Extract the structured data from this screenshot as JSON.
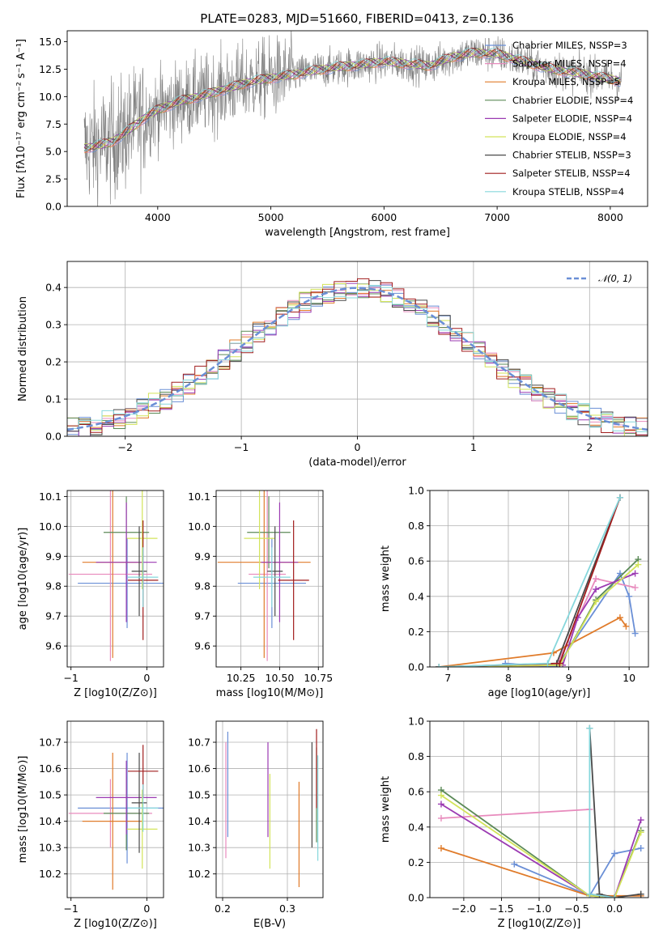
{
  "figure_title": "PLATE=0283, MJD=51660, FIBERID=0413, z=0.136",
  "series_colors": {
    "Chabrier MILES": "#6a8fd6",
    "Salpeter MILES": "#e88bbd",
    "Kroupa MILES": "#e07b2a",
    "Chabrier ELODIE": "#5b8a57",
    "Salpeter ELODIE": "#9b3ab2",
    "Kroupa ELODIE": "#d3e45a",
    "Chabrier STELIB": "#4a4a4a",
    "Salpeter STELIB": "#a11d1d",
    "Kroupa STELIB": "#86d7dc"
  },
  "chart_data": [
    {
      "id": "spectrum",
      "type": "line",
      "title": "PLATE=0283, MJD=51660, FIBERID=0413, z=0.136",
      "xlabel": "wavelength [Angstrom, rest frame]",
      "ylabel": "Flux [fλ10⁻¹⁷ erg cm⁻² s⁻¹ A⁻¹]",
      "xlim": [
        3200,
        8330
      ],
      "ylim": [
        0,
        16
      ],
      "xticks": [
        "4000",
        "5000",
        "6000",
        "7000",
        "8000"
      ],
      "yticks": [
        "0.0",
        "2.5",
        "5.0",
        "7.5",
        "10.0",
        "12.5",
        "15.0"
      ],
      "data_color": "#808080",
      "continuum": {
        "x": [
          3350,
          3500,
          3600,
          3700,
          3800,
          3900,
          4000,
          4200,
          4400,
          4600,
          4800,
          5000,
          5200,
          5400,
          5600,
          5800,
          6000,
          6200,
          6400,
          6600,
          6800,
          7000,
          7200,
          7400,
          7600,
          7800,
          8000,
          8100
        ],
        "y": [
          5.3,
          5.6,
          5.9,
          6.6,
          7.4,
          8.2,
          8.8,
          9.6,
          10.1,
          10.7,
          11.3,
          11.7,
          12.0,
          12.4,
          12.7,
          12.9,
          13.2,
          13.0,
          12.8,
          13.6,
          14.0,
          13.9,
          13.3,
          12.7,
          12.3,
          12.0,
          11.6,
          11.4
        ]
      },
      "legend": [
        "Chabrier MILES, NSSP=3",
        "Salpeter MILES, NSSP=4",
        "Kroupa MILES, NSSP=5",
        "Chabrier ELODIE, NSSP=4",
        "Salpeter ELODIE, NSSP=4",
        "Kroupa ELODIE, NSSP=4",
        "Chabrier STELIB, NSSP=3",
        "Salpeter STELIB, NSSP=4",
        "Kroupa STELIB, NSSP=4"
      ],
      "legend_series": [
        "Chabrier MILES",
        "Salpeter MILES",
        "Kroupa MILES",
        "Chabrier ELODIE",
        "Salpeter ELODIE",
        "Kroupa ELODIE",
        "Chabrier STELIB",
        "Salpeter STELIB",
        "Kroupa STELIB"
      ],
      "legend_position": "top-right"
    },
    {
      "id": "residuals",
      "type": "line",
      "xlabel": "(data-model)/error",
      "ylabel": "Normed distribution",
      "xlim": [
        -2.5,
        2.5
      ],
      "ylim": [
        0,
        0.47
      ],
      "xticks": [
        "−2",
        "−1",
        "0",
        "1",
        "2"
      ],
      "yticks": [
        "0.0",
        "0.1",
        "0.2",
        "0.3",
        "0.4"
      ],
      "reference": {
        "name": "𝒩(0, 1)",
        "mu": 0,
        "sigma": 1,
        "color": "#6a8fd6",
        "style": "dashed"
      },
      "legend_position": "top-right",
      "bin_width": 0.1
    },
    {
      "id": "age-vs-Z",
      "type": "scatter",
      "xlabel": "Z [log10(Z/Z⊙)]",
      "ylabel": "age [log10(age/yr)]",
      "xlim": [
        -1.05,
        0.22
      ],
      "ylim": [
        9.53,
        10.12
      ],
      "xticks": [
        "−1",
        "0"
      ],
      "yticks": [
        "9.6",
        "9.7",
        "9.8",
        "9.9",
        "10.0",
        "10.1"
      ],
      "points": [
        {
          "series": "Chabrier MILES",
          "x": -0.26,
          "y": 9.81,
          "xerr": 0.65,
          "yerr": 0.15
        },
        {
          "series": "Salpeter MILES",
          "x": -0.48,
          "y": 9.84,
          "xerr": 0.55,
          "yerr": 0.29
        },
        {
          "series": "Kroupa MILES",
          "x": -0.45,
          "y": 9.88,
          "xerr": 0.4,
          "yerr": 0.32
        },
        {
          "series": "Chabrier ELODIE",
          "x": -0.27,
          "y": 9.98,
          "xerr": 0.3,
          "yerr": 0.12
        },
        {
          "series": "Salpeter ELODIE",
          "x": -0.27,
          "y": 9.88,
          "xerr": 0.4,
          "yerr": 0.2
        },
        {
          "series": "Kroupa ELODIE",
          "x": -0.06,
          "y": 9.96,
          "xerr": 0.2,
          "yerr": 0.17
        },
        {
          "series": "Chabrier STELIB",
          "x": -0.1,
          "y": 9.85,
          "xerr": 0.1,
          "yerr": 0.15
        },
        {
          "series": "Salpeter STELIB",
          "x": -0.05,
          "y": 9.82,
          "xerr": 0.2,
          "yerr": 0.2
        },
        {
          "series": "Kroupa STELIB",
          "x": -0.05,
          "y": 9.83,
          "xerr": 0.2,
          "yerr": 0.1
        }
      ]
    },
    {
      "id": "age-vs-mass",
      "type": "scatter",
      "xlabel": "mass [log10(M/M⊙)]",
      "ylabel": "",
      "xlim": [
        10.09,
        10.78
      ],
      "ylim": [
        9.53,
        10.12
      ],
      "xticks": [
        "10.25",
        "10.50",
        "10.75"
      ],
      "yticks": [
        "9.6",
        "9.7",
        "9.8",
        "9.9",
        "10.0",
        "10.1"
      ],
      "points": [
        {
          "series": "Chabrier MILES",
          "x": 10.45,
          "y": 9.81,
          "xerr": 0.22,
          "yerr": 0.15
        },
        {
          "series": "Salpeter MILES",
          "x": 10.42,
          "y": 9.84,
          "xerr": 0.12,
          "yerr": 0.29
        },
        {
          "series": "Kroupa MILES",
          "x": 10.4,
          "y": 9.88,
          "xerr": 0.3,
          "yerr": 0.32
        },
        {
          "series": "Chabrier ELODIE",
          "x": 10.43,
          "y": 9.98,
          "xerr": 0.14,
          "yerr": 0.12
        },
        {
          "series": "Salpeter ELODIE",
          "x": 10.5,
          "y": 9.88,
          "xerr": 0.12,
          "yerr": 0.2
        },
        {
          "series": "Kroupa ELODIE",
          "x": 10.37,
          "y": 9.96,
          "xerr": 0.1,
          "yerr": 0.17
        },
        {
          "series": "Chabrier STELIB",
          "x": 10.47,
          "y": 9.85,
          "xerr": 0.05,
          "yerr": 0.15
        },
        {
          "series": "Salpeter STELIB",
          "x": 10.59,
          "y": 9.82,
          "xerr": 0.1,
          "yerr": 0.2
        },
        {
          "series": "Kroupa STELIB",
          "x": 10.45,
          "y": 9.83,
          "xerr": 0.12,
          "yerr": 0.1
        }
      ]
    },
    {
      "id": "mass-weight-vs-age",
      "type": "line",
      "xlabel": "age [log10(age/yr)]",
      "ylabel": "mass weight",
      "xlim": [
        6.7,
        10.32
      ],
      "ylim": [
        0,
        1.0
      ],
      "xticks": [
        "7",
        "8",
        "9",
        "10"
      ],
      "yticks": [
        "0.0",
        "0.2",
        "0.4",
        "0.6",
        "0.8",
        "1.0"
      ],
      "series": [
        {
          "name": "Chabrier MILES",
          "x": [
            7.95,
            8.8,
            9.85,
            10.0,
            10.1
          ],
          "y": [
            0.02,
            0.0,
            0.53,
            0.4,
            0.19
          ]
        },
        {
          "name": "Salpeter MILES",
          "x": [
            6.85,
            8.8,
            9.45,
            10.1
          ],
          "y": [
            0.0,
            0.01,
            0.5,
            0.45
          ]
        },
        {
          "name": "Kroupa MILES",
          "x": [
            6.85,
            8.75,
            9.85,
            9.95
          ],
          "y": [
            0.0,
            0.08,
            0.28,
            0.23
          ]
        },
        {
          "name": "Chabrier ELODIE",
          "x": [
            6.85,
            8.85,
            9.45,
            10.15
          ],
          "y": [
            0.0,
            0.01,
            0.38,
            0.61
          ]
        },
        {
          "name": "Salpeter ELODIE",
          "x": [
            6.85,
            8.9,
            9.15,
            9.45,
            10.1
          ],
          "y": [
            0.0,
            0.01,
            0.28,
            0.44,
            0.53
          ]
        },
        {
          "name": "Kroupa ELODIE",
          "x": [
            6.85,
            8.85,
            9.45,
            10.15
          ],
          "y": [
            0.0,
            0.01,
            0.37,
            0.58
          ]
        },
        {
          "name": "Chabrier STELIB",
          "x": [
            6.85,
            8.8,
            9.85
          ],
          "y": [
            0.0,
            0.02,
            0.96
          ]
        },
        {
          "name": "Salpeter STELIB",
          "x": [
            6.85,
            8.85,
            9.85
          ],
          "y": [
            0.0,
            0.02,
            0.96
          ]
        },
        {
          "name": "Kroupa STELIB",
          "x": [
            6.85,
            8.65,
            9.85
          ],
          "y": [
            0.0,
            0.02,
            0.96
          ]
        }
      ]
    },
    {
      "id": "mass-vs-Z",
      "type": "scatter",
      "xlabel": "Z [log10(Z/Z⊙)]",
      "ylabel": "mass [log10(M/M⊙)]",
      "xlim": [
        -1.05,
        0.22
      ],
      "ylim": [
        10.11,
        10.78
      ],
      "xticks": [
        "−1",
        "0"
      ],
      "yticks": [
        "10.2",
        "10.3",
        "10.4",
        "10.5",
        "10.6",
        "10.7"
      ],
      "points": [
        {
          "series": "Chabrier MILES",
          "x": -0.26,
          "y": 10.45,
          "xerr": 0.65,
          "yerr": 0.21
        },
        {
          "series": "Salpeter MILES",
          "x": -0.48,
          "y": 10.43,
          "xerr": 0.55,
          "yerr": 0.13
        },
        {
          "series": "Kroupa MILES",
          "x": -0.45,
          "y": 10.4,
          "xerr": 0.4,
          "yerr": 0.26
        },
        {
          "series": "Chabrier ELODIE",
          "x": -0.27,
          "y": 10.43,
          "xerr": 0.3,
          "yerr": 0.14
        },
        {
          "series": "Salpeter ELODIE",
          "x": -0.27,
          "y": 10.49,
          "xerr": 0.4,
          "yerr": 0.14
        },
        {
          "series": "Kroupa ELODIE",
          "x": -0.06,
          "y": 10.37,
          "xerr": 0.2,
          "yerr": 0.15
        },
        {
          "series": "Chabrier STELIB",
          "x": -0.1,
          "y": 10.47,
          "xerr": 0.1,
          "yerr": 0.19
        },
        {
          "series": "Salpeter STELIB",
          "x": -0.05,
          "y": 10.59,
          "xerr": 0.2,
          "yerr": 0.1
        },
        {
          "series": "Kroupa STELIB",
          "x": -0.05,
          "y": 10.45,
          "xerr": 0.2,
          "yerr": 0.09
        }
      ]
    },
    {
      "id": "mass-vs-ebv",
      "type": "scatter",
      "xlabel": "E(B-V)",
      "ylabel": "",
      "xlim": [
        0.19,
        0.355
      ],
      "ylim": [
        10.11,
        10.78
      ],
      "xticks": [
        "0.2",
        "0.3"
      ],
      "yticks": [
        "10.2",
        "10.3",
        "10.4",
        "10.5",
        "10.6",
        "10.7"
      ],
      "points": [
        {
          "series": "Chabrier MILES",
          "x": 0.208,
          "y": 10.54,
          "yerr": 0.2
        },
        {
          "series": "Salpeter MILES",
          "x": 0.205,
          "y": 10.48,
          "yerr": 0.22
        },
        {
          "series": "Kroupa MILES",
          "x": 0.318,
          "y": 10.35,
          "yerr": 0.2
        },
        {
          "series": "Chabrier ELODIE",
          "x": 0.345,
          "y": 10.5,
          "yerr": 0.18
        },
        {
          "series": "Salpeter ELODIE",
          "x": 0.27,
          "y": 10.52,
          "yerr": 0.18
        },
        {
          "series": "Kroupa ELODIE",
          "x": 0.273,
          "y": 10.4,
          "yerr": 0.18
        },
        {
          "series": "Chabrier STELIB",
          "x": 0.338,
          "y": 10.5,
          "yerr": 0.2
        },
        {
          "series": "Salpeter STELIB",
          "x": 0.345,
          "y": 10.6,
          "yerr": 0.15
        },
        {
          "series": "Kroupa STELIB",
          "x": 0.347,
          "y": 10.45,
          "yerr": 0.2
        }
      ]
    },
    {
      "id": "mass-weight-vs-Z",
      "type": "line",
      "xlabel": "Z [log10(Z/Z⊙)]",
      "ylabel": "mass weight",
      "xlim": [
        -2.45,
        0.45
      ],
      "ylim": [
        0,
        1.0
      ],
      "xticks": [
        "−2.0",
        "−1.5",
        "−1.0",
        "−0.5",
        "0.0",
        "0.5"
      ],
      "yticks": [
        "0.0",
        "0.2",
        "0.4",
        "0.6",
        "0.8",
        "1.0"
      ],
      "series": [
        {
          "name": "Chabrier MILES",
          "x": [
            -1.33,
            -0.33,
            0.0,
            0.35
          ],
          "y": [
            0.19,
            0.01,
            0.25,
            0.28
          ]
        },
        {
          "name": "Salpeter MILES",
          "x": [
            -2.3,
            -0.33
          ],
          "y": [
            0.45,
            0.5
          ]
        },
        {
          "name": "Kroupa MILES",
          "x": [
            -2.3,
            -0.33,
            0.35
          ],
          "y": [
            0.28,
            0.01,
            0.01
          ]
        },
        {
          "name": "Chabrier ELODIE",
          "x": [
            -2.3,
            -0.33,
            0.0,
            0.35
          ],
          "y": [
            0.61,
            0.01,
            0.0,
            0.38
          ]
        },
        {
          "name": "Salpeter ELODIE",
          "x": [
            -2.3,
            -0.33,
            0.0,
            0.35
          ],
          "y": [
            0.53,
            0.01,
            0.0,
            0.44
          ]
        },
        {
          "name": "Kroupa ELODIE",
          "x": [
            -2.3,
            -0.33,
            0.0,
            0.35
          ],
          "y": [
            0.58,
            0.01,
            0.0,
            0.37
          ]
        },
        {
          "name": "Chabrier STELIB",
          "x": [
            -0.33,
            -0.2,
            0.0,
            0.35
          ],
          "y": [
            0.96,
            0.02,
            0.0,
            0.02
          ]
        },
        {
          "name": "Salpeter STELIB",
          "x": [
            -0.33,
            0.0
          ],
          "y": [
            0.02,
            0.0
          ]
        },
        {
          "name": "Kroupa STELIB",
          "x": [
            -0.33,
            -0.33,
            0.0
          ],
          "y": [
            0.96,
            0.02,
            0.0
          ]
        }
      ]
    }
  ]
}
